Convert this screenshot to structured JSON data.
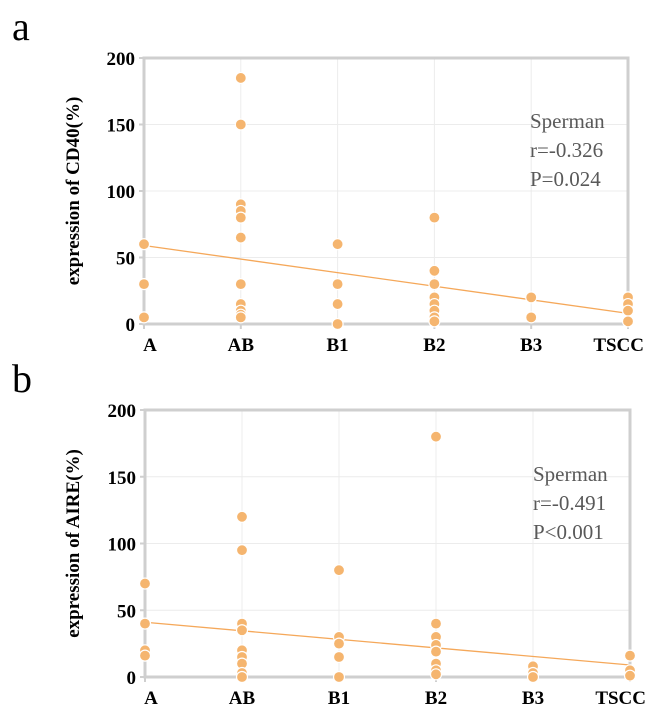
{
  "chart_data": [
    {
      "type": "scatter",
      "panel_label": "a",
      "ylabel": "expression of CD40(%)",
      "xlabel": "",
      "categories": [
        "A",
        "AB",
        "B1",
        "B2",
        "B3",
        "TSCC"
      ],
      "ylim": [
        0,
        200
      ],
      "yticks": [
        0,
        50,
        100,
        150,
        200
      ],
      "grid": true,
      "points": {
        "A": [
          60,
          30,
          5
        ],
        "AB": [
          185,
          150,
          90,
          85,
          80,
          65,
          30,
          15,
          10,
          7,
          5
        ],
        "B1": [
          60,
          30,
          15,
          0
        ],
        "B2": [
          80,
          40,
          30,
          20,
          15,
          10,
          5,
          2
        ],
        "B3": [
          20,
          5
        ],
        "TSCC": [
          20,
          15,
          10,
          2
        ]
      },
      "trendline": {
        "start": 59,
        "end": 8
      },
      "annotation": [
        "Sperman",
        "r=-0.326",
        "P=0.024"
      ],
      "colors": {
        "points": "#f5b56f",
        "line": "#f5a85a",
        "axis": "#cfcfcf",
        "grid": "#ececec"
      }
    },
    {
      "type": "scatter",
      "panel_label": "b",
      "ylabel": "expression of AIRE(%)",
      "xlabel": "",
      "categories": [
        "A",
        "AB",
        "B1",
        "B2",
        "B3",
        "TSCC"
      ],
      "ylim": [
        0,
        200
      ],
      "yticks": [
        0,
        50,
        100,
        150,
        200
      ],
      "grid": true,
      "points": {
        "A": [
          70,
          40,
          20,
          16
        ],
        "AB": [
          120,
          95,
          40,
          35,
          20,
          15,
          10,
          3,
          0
        ],
        "B1": [
          80,
          30,
          25,
          15,
          0
        ],
        "B2": [
          180,
          40,
          30,
          24,
          19,
          10,
          5,
          2
        ],
        "B3": [
          8,
          3,
          0
        ],
        "TSCC": [
          16,
          5,
          1
        ]
      },
      "trendline": {
        "start": 41,
        "end": 9
      },
      "annotation": [
        "Sperman",
        "r=-0.491",
        "P<0.001"
      ],
      "colors": {
        "points": "#f5b56f",
        "line": "#f5a85a",
        "axis": "#cfcfcf",
        "grid": "#ececec"
      }
    }
  ]
}
